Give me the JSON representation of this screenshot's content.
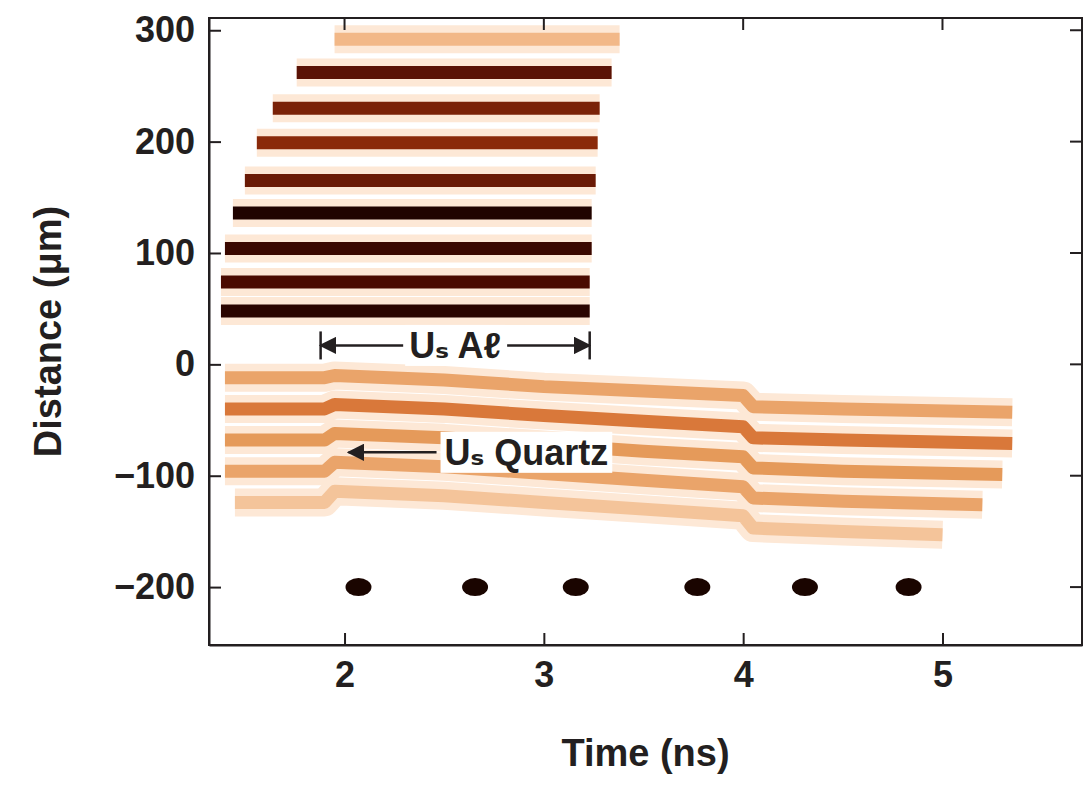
{
  "chart_data": {
    "type": "line",
    "x_label": "Time (ns)",
    "y_label": "Distance (μm)",
    "xlim": [
      1.32,
      5.7
    ],
    "ylim": [
      -252,
      311
    ],
    "xticks": [
      2,
      3,
      4,
      5
    ],
    "yticks": [
      300,
      200,
      100,
      0,
      {
        "value": -100,
        "label": "−100"
      },
      {
        "value": -200,
        "label": "−200"
      }
    ],
    "series": [
      {
        "type": "line",
        "color": "#2a0500",
        "x": [
          1.38,
          3.23
        ],
        "values": [
          48,
          48
        ]
      },
      {
        "type": "line",
        "color": "#4a0a00",
        "x": [
          1.38,
          3.23
        ],
        "values": [
          74,
          74
        ]
      },
      {
        "type": "line",
        "color": "#3a0800",
        "x": [
          1.4,
          3.24
        ],
        "values": [
          104,
          104
        ]
      },
      {
        "type": "line",
        "color": "#1f0300",
        "x": [
          1.44,
          3.24
        ],
        "values": [
          136,
          136
        ]
      },
      {
        "type": "line",
        "color": "#6a1a05",
        "x": [
          1.5,
          3.26
        ],
        "values": [
          165,
          165
        ]
      },
      {
        "type": "line",
        "color": "#8a2a0a",
        "x": [
          1.56,
          3.27
        ],
        "values": [
          199,
          199
        ]
      },
      {
        "type": "line",
        "color": "#7a2208",
        "x": [
          1.64,
          3.28
        ],
        "values": [
          230,
          230
        ]
      },
      {
        "type": "line",
        "color": "#5a1205",
        "x": [
          1.76,
          3.34
        ],
        "values": [
          262,
          262
        ]
      },
      {
        "type": "line",
        "color": "#f2b888",
        "x": [
          1.95,
          3.38
        ],
        "values": [
          292,
          292
        ]
      },
      {
        "type": "line",
        "color": "#eaa46a",
        "x": [
          1.4,
          1.9,
          1.95,
          2.5,
          3.0,
          3.5,
          4.0,
          4.05,
          4.5,
          5.35
        ],
        "values": [
          -12,
          -12,
          -10,
          -14,
          -20,
          -24,
          -28,
          -38,
          -40,
          -43
        ]
      },
      {
        "type": "line",
        "color": "#d9783a",
        "x": [
          1.4,
          1.9,
          1.95,
          2.5,
          3.0,
          3.5,
          4.0,
          4.05,
          4.5,
          5.35
        ],
        "values": [
          -40,
          -40,
          -36,
          -40,
          -46,
          -51,
          -56,
          -66,
          -68,
          -71
        ]
      },
      {
        "type": "line",
        "color": "#e59a5a",
        "x": [
          1.4,
          1.9,
          1.95,
          2.5,
          3.0,
          3.5,
          4.0,
          4.05,
          4.5,
          5.3
        ],
        "values": [
          -68,
          -68,
          -62,
          -66,
          -72,
          -78,
          -83,
          -93,
          -96,
          -99
        ]
      },
      {
        "type": "line",
        "color": "#eaa46a",
        "x": [
          1.4,
          1.9,
          1.95,
          2.5,
          3.0,
          3.5,
          4.0,
          4.05,
          4.5,
          5.2
        ],
        "values": [
          -96,
          -96,
          -88,
          -92,
          -98,
          -104,
          -110,
          -120,
          -123,
          -126
        ]
      },
      {
        "type": "line",
        "color": "#f4c49a",
        "x": [
          1.45,
          1.9,
          1.95,
          2.5,
          3.0,
          3.5,
          4.0,
          4.05,
          4.5,
          5.0
        ],
        "values": [
          -124,
          -124,
          -114,
          -118,
          -124,
          -130,
          -136,
          -147,
          -150,
          -153
        ]
      },
      {
        "type": "scatter",
        "marker": "oval",
        "color": "#1a0500",
        "x": [
          2.07,
          2.655,
          3.16,
          3.77,
          4.31,
          4.83
        ],
        "values": [
          -200,
          -200,
          -200,
          -200,
          -200,
          -200
        ]
      }
    ],
    "annotations": [
      {
        "text": "Uₛ Aℓ",
        "x": [
          1.88,
          3.23
        ],
        "y": 17
      },
      {
        "text": "Uₛ Quartz",
        "x": 2.0,
        "y": -79
      }
    ]
  }
}
